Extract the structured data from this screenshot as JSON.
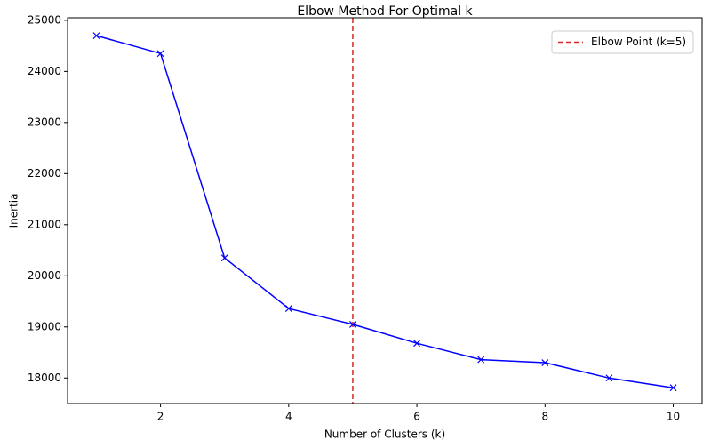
{
  "chart_data": {
    "type": "line",
    "title": "Elbow Method For Optimal k",
    "xlabel": "Number of Clusters (k)",
    "ylabel": "Inertia",
    "xlim": [
      0.55,
      10.45
    ],
    "ylim": [
      17500,
      25050
    ],
    "xticks": [
      2,
      4,
      6,
      8,
      10
    ],
    "yticks": [
      18000,
      19000,
      20000,
      21000,
      22000,
      23000,
      24000,
      25000
    ],
    "series": [
      {
        "x": [
          1,
          2,
          3,
          4,
          5,
          6,
          7,
          8,
          9,
          10
        ],
        "values": [
          24700,
          24350,
          20350,
          19360,
          19050,
          18680,
          18360,
          18300,
          18000,
          17810
        ],
        "color": "#0000ff",
        "marker": "x"
      }
    ],
    "vlines": [
      {
        "x": 5,
        "color": "#d62728",
        "style": "dashed",
        "label": "Elbow Point (k=5)"
      }
    ],
    "legend": {
      "position": "top-right",
      "entries": [
        "Elbow Point (k=5)"
      ]
    },
    "grid": false
  }
}
